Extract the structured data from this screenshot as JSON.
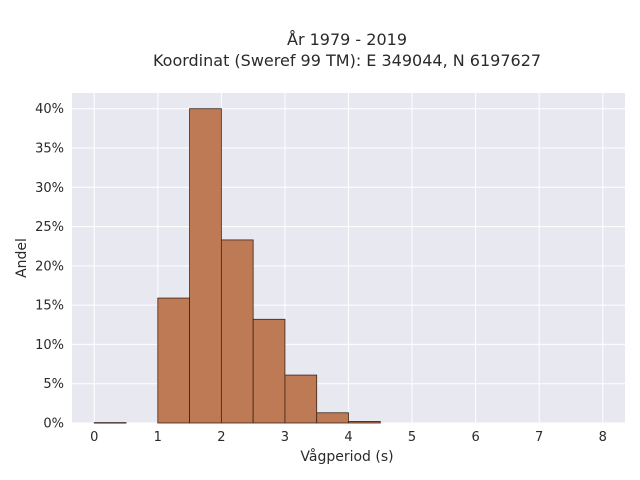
{
  "chart_data": {
    "type": "bar",
    "title_lines": [
      "År 1979 - 2019",
      "Koordinat (Sweref 99 TM): E 349044, N 6197627"
    ],
    "xlabel": "Vågperiod (s)",
    "ylabel": "Andel",
    "xlim": [
      -0.35,
      8.35
    ],
    "ylim": [
      0,
      42
    ],
    "x_ticks": [
      0,
      1,
      2,
      3,
      4,
      5,
      6,
      7,
      8
    ],
    "x_tick_labels": [
      "0",
      "1",
      "2",
      "3",
      "4",
      "5",
      "6",
      "7",
      "8"
    ],
    "y_ticks": [
      0,
      5,
      10,
      15,
      20,
      25,
      30,
      35,
      40
    ],
    "y_tick_labels": [
      "0%",
      "5%",
      "10%",
      "15%",
      "20%",
      "25%",
      "30%",
      "35%",
      "40%"
    ],
    "bin_width": 0.5,
    "bins": [
      {
        "start": 0.0,
        "value": 0.05
      },
      {
        "start": 1.0,
        "value": 15.9
      },
      {
        "start": 1.5,
        "value": 40.0
      },
      {
        "start": 2.0,
        "value": 23.3
      },
      {
        "start": 2.5,
        "value": 13.2
      },
      {
        "start": 3.0,
        "value": 6.1
      },
      {
        "start": 3.5,
        "value": 1.3
      },
      {
        "start": 4.0,
        "value": 0.2
      }
    ],
    "grid": true,
    "colors": {
      "bar_fill": "#bd7a55",
      "bar_edge": "#3a2418",
      "plot_background": "#e8e8f0",
      "grid": "#ffffff"
    }
  }
}
